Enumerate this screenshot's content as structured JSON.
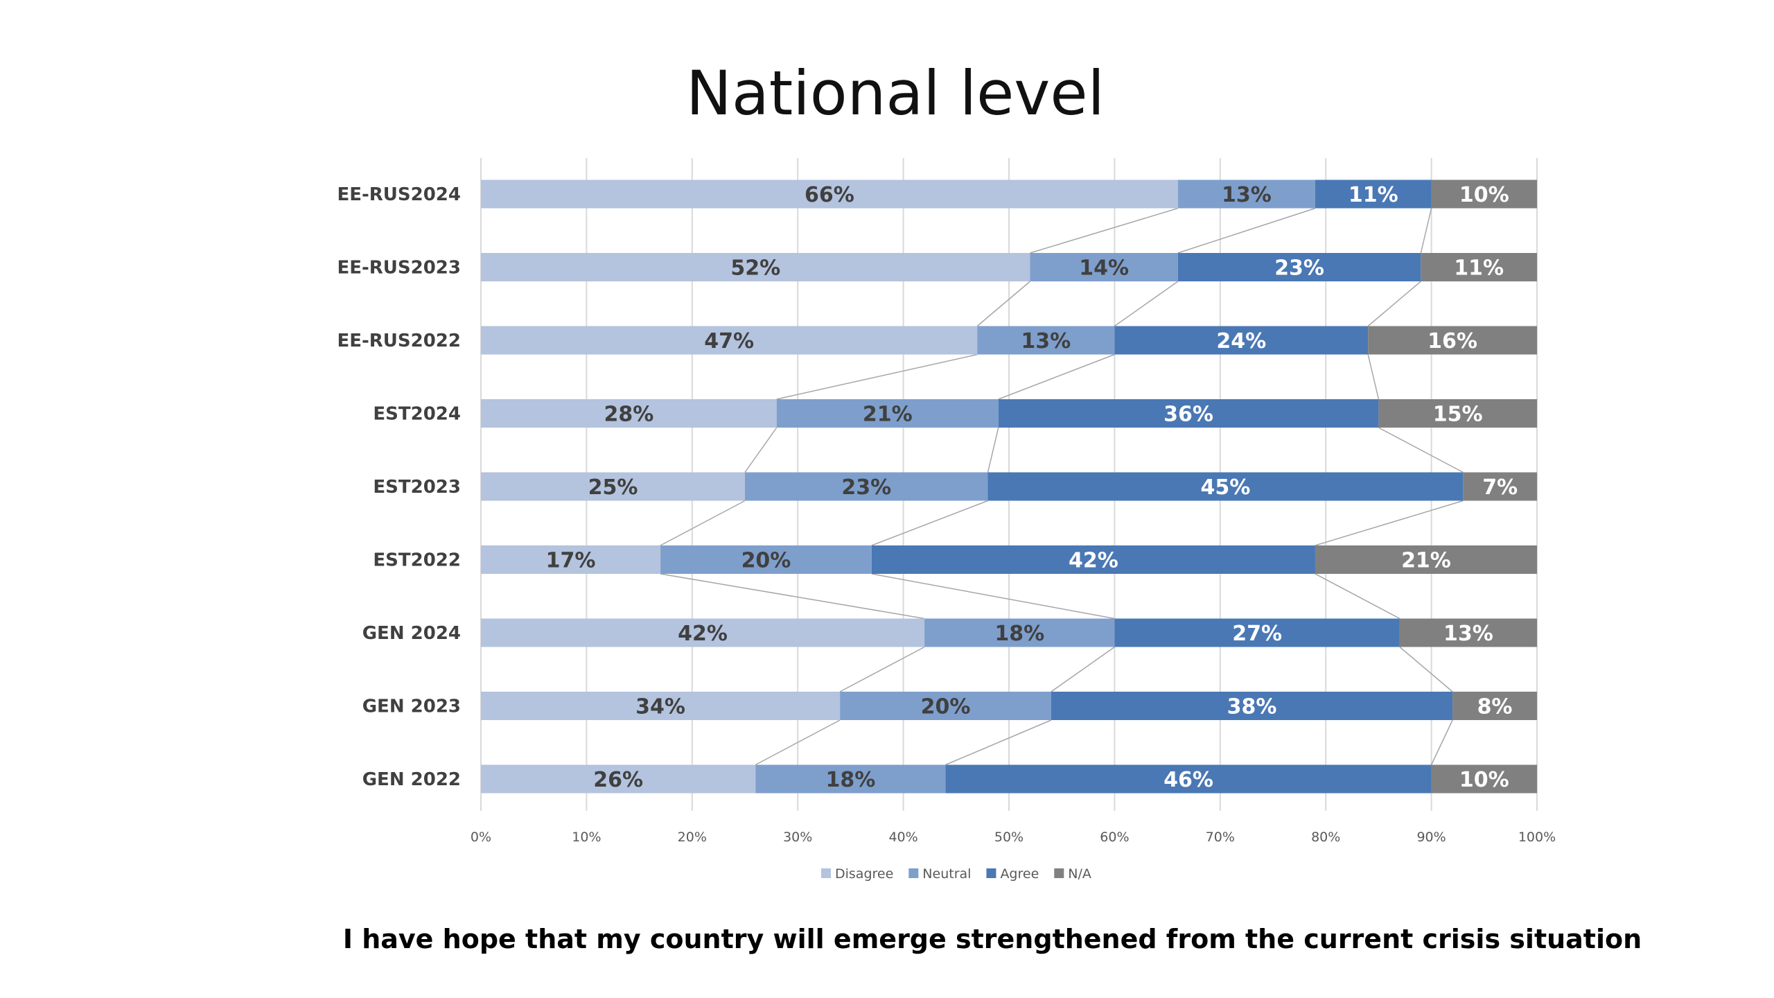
{
  "page": {
    "background": "#ffffff"
  },
  "chart_data": {
    "type": "bar",
    "orientation": "horizontal",
    "stacked": "100%",
    "title": "National level",
    "caption": "I have hope that my country will emerge strengthened from the current crisis situation",
    "xlabel": "",
    "ylabel": "",
    "xlim": [
      0,
      100
    ],
    "x_ticks": [
      "0%",
      "10%",
      "20%",
      "30%",
      "40%",
      "50%",
      "60%",
      "70%",
      "80%",
      "90%",
      "100%"
    ],
    "grid": true,
    "series_lines": true,
    "legend_position": "bottom",
    "categories": [
      "EE-RUS2024",
      "EE-RUS2023",
      "EE-RUS2022",
      "EST2024",
      "EST2023",
      "EST2022",
      "GEN 2024",
      "GEN 2023",
      "GEN 2022"
    ],
    "series": [
      {
        "name": "Disagree",
        "color": "#b4c3de",
        "label_color": "#404040",
        "values": [
          66,
          52,
          47,
          28,
          25,
          17,
          42,
          34,
          26
        ],
        "labels": [
          "66%",
          "52%",
          "47%",
          "28%",
          "25%",
          "17%",
          "42%",
          "34%",
          "26%"
        ]
      },
      {
        "name": "Neutral",
        "color": "#7e9fcc",
        "label_color": "#404040",
        "values": [
          13,
          14,
          13,
          21,
          23,
          20,
          18,
          20,
          18
        ],
        "labels": [
          "13%",
          "14%",
          "13%",
          "21%",
          "23%",
          "20%",
          "18%",
          "20%",
          "18%"
        ]
      },
      {
        "name": "Agree",
        "color": "#4a78b4",
        "label_color": "#ffffff",
        "values": [
          11,
          23,
          24,
          36,
          45,
          42,
          27,
          38,
          46
        ],
        "labels": [
          "11%",
          "23%",
          "24%",
          "36%",
          "45%",
          "42%",
          "27%",
          "38%",
          "46%"
        ]
      },
      {
        "name": "N/A",
        "color": "#808080",
        "label_color": "#ffffff",
        "values": [
          10,
          11,
          16,
          15,
          7,
          21,
          13,
          8,
          10
        ],
        "labels": [
          "10%",
          "11%",
          "16%",
          "15%",
          "7%",
          "21%",
          "13%",
          "8%",
          "10%"
        ]
      }
    ],
    "colors": {
      "gridline": "#d9d9d9",
      "series_line": "#a6a6a6",
      "tick_text": "#595959",
      "category_text": "#404040"
    }
  }
}
